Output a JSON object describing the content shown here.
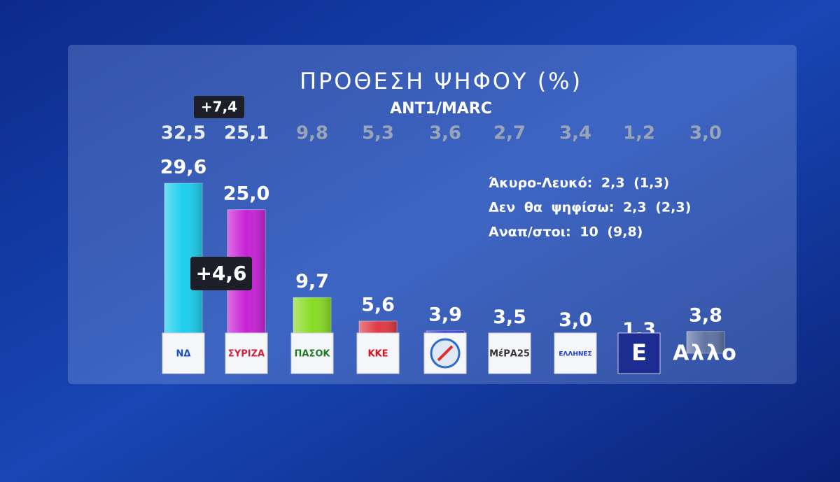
{
  "chart_data": {
    "type": "bar",
    "title": "ΠΡΟΘΕΣΗ ΨΗΦΟΥ (%)",
    "subtitle": "ANT1/MARC",
    "categories": [
      "ΝΔ",
      "ΣΥΡΙΖΑ",
      "ΠΑΣΟΚ",
      "ΚΚΕ",
      null,
      "ΜέΡΑ25",
      "ΕΛΛΗΝΕΣ",
      "Ε",
      "Αλλο"
    ],
    "colors": [
      "#1ad4ef",
      "#cf1fd6",
      "#8de21c",
      "#e8383c",
      "#2a2ad8",
      "#f27a22",
      "#1c3ccc",
      "#1d2c90",
      "#8a8f9c"
    ],
    "series": [
      {
        "values": [
          29.6,
          25.0,
          9.7,
          5.6,
          3.9,
          3.5,
          3.0,
          1.3,
          3.8
        ],
        "value_labels": [
          "29,6",
          "25,0",
          "9,7",
          "5,6",
          "3,9",
          "3,5",
          "3,0",
          "1,3",
          "3,8"
        ]
      },
      {
        "values": [
          32.5,
          25.1,
          9.8,
          5.3,
          3.6,
          2.7,
          3.4,
          1.2,
          3.0
        ],
        "value_labels": [
          "32,5",
          "25,1",
          "9,8",
          "5,3",
          "3,6",
          "2,7",
          "3,4",
          "1,2",
          "3,0"
        ]
      }
    ],
    "annotations": [
      "+7,4",
      "+4,6"
    ],
    "notes": [
      "Άκυρο-Λευκό: 2,3 (1,3)",
      "Δεν θα ψηφίσω: 2,3 (2,3)",
      "Αναπ/στοι: 10 (9,8)"
    ]
  }
}
